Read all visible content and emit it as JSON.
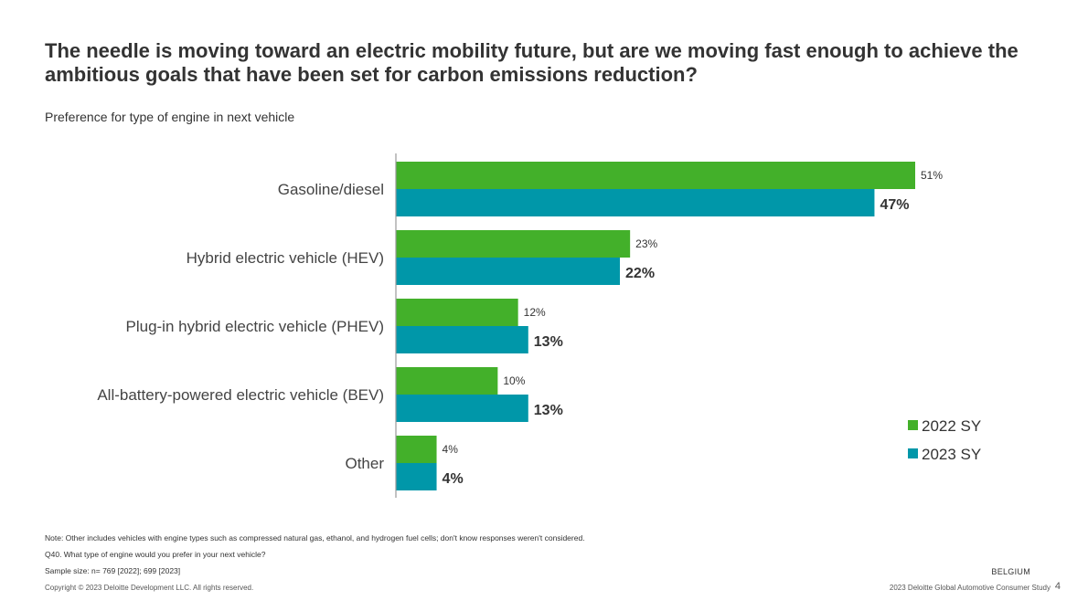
{
  "title": "The needle is moving toward an electric mobility future, but are we moving fast enough to achieve the ambitious goals that have been set for carbon emissions reduction?",
  "subtitle": "Preference for type of engine in next vehicle",
  "colors": {
    "series_2022": "#43b02a",
    "series_2023": "#0097a9",
    "axis": "#999999"
  },
  "chart_data": {
    "type": "bar",
    "orientation": "horizontal",
    "title": "Preference for type of engine in next vehicle",
    "categories": [
      "Gasoline/diesel",
      "Hybrid electric vehicle (HEV)",
      "Plug-in hybrid electric vehicle (PHEV)",
      "All-battery-powered electric vehicle (BEV)",
      "Other"
    ],
    "series": [
      {
        "name": "2022 SY",
        "values": [
          51,
          23,
          12,
          10,
          4
        ],
        "labels": [
          "51%",
          "23%",
          "12%",
          "10%",
          "4%"
        ]
      },
      {
        "name": "2023 SY",
        "values": [
          47,
          22,
          13,
          13,
          4
        ],
        "labels": [
          "47%",
          "22%",
          "13%",
          "13%",
          "4%"
        ]
      }
    ],
    "xlim": [
      0,
      51
    ],
    "legend_position": "bottom-right",
    "unit": "%"
  },
  "notes": {
    "note": "Note: Other includes vehicles with engine types such as compressed natural gas, ethanol, and hydrogen fuel cells; don't know responses weren't considered.",
    "question": "Q40. What type of engine would you prefer in your next vehicle?",
    "sample": "Sample size: n= 769 [2022]; 699 [2023]"
  },
  "footer": {
    "copyright": "Copyright © 2023 Deloitte Development LLC. All rights reserved.",
    "study": "2023 Deloitte Global Automotive Consumer Study",
    "page": "4",
    "country": "BELGIUM"
  }
}
